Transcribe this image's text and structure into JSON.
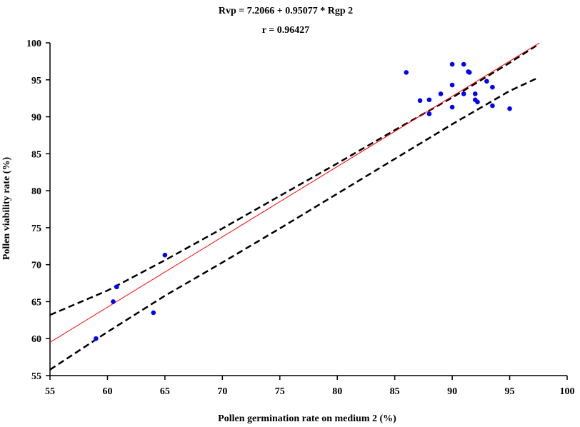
{
  "chart_data": {
    "type": "scatter",
    "title": "Rvp = 7.2066 + 0.95077 * Rgp 2",
    "subtitle": "r = 0.96427",
    "xlabel": "Pollen germination rate on medium 2 (%)",
    "ylabel": "Pollen viability rate (%)",
    "xlim": [
      55,
      100
    ],
    "ylim": [
      55,
      100
    ],
    "xticks": [
      55,
      60,
      65,
      70,
      75,
      80,
      85,
      90,
      95,
      100
    ],
    "yticks": [
      55,
      60,
      65,
      70,
      75,
      80,
      85,
      90,
      95,
      100
    ],
    "grid": false,
    "points": {
      "x": [
        59.0,
        60.5,
        60.8,
        64.0,
        65.0,
        86.0,
        87.2,
        88.0,
        88.0,
        89.0,
        90.0,
        90.0,
        90.0,
        91.0,
        91.0,
        91.4,
        91.5,
        92.0,
        92.0,
        92.2,
        93.0,
        93.5,
        93.5,
        95.0
      ],
      "y": [
        60.0,
        65.0,
        67.0,
        63.5,
        71.3,
        96.0,
        92.2,
        92.3,
        90.4,
        93.1,
        97.1,
        94.3,
        91.3,
        97.1,
        93.1,
        96.1,
        96.0,
        93.1,
        92.3,
        92.0,
        94.8,
        94.0,
        91.5,
        91.1
      ]
    },
    "regression": {
      "intercept": 7.2066,
      "slope": 0.95077,
      "x_range": [
        55,
        98
      ]
    },
    "confidence_bands": {
      "x": [
        55,
        60,
        65,
        70,
        75,
        80,
        85,
        90,
        95,
        97.5
      ],
      "upper": [
        63.2,
        66.5,
        70.6,
        74.9,
        79.3,
        83.7,
        88.2,
        92.6,
        97.3,
        99.8
      ],
      "lower": [
        55.8,
        60.9,
        65.8,
        70.3,
        74.9,
        79.6,
        84.3,
        89.0,
        93.5,
        95.3
      ]
    },
    "colors": {
      "points": "#0000ff",
      "regression": "#ff0000",
      "bands": "#000000"
    }
  }
}
